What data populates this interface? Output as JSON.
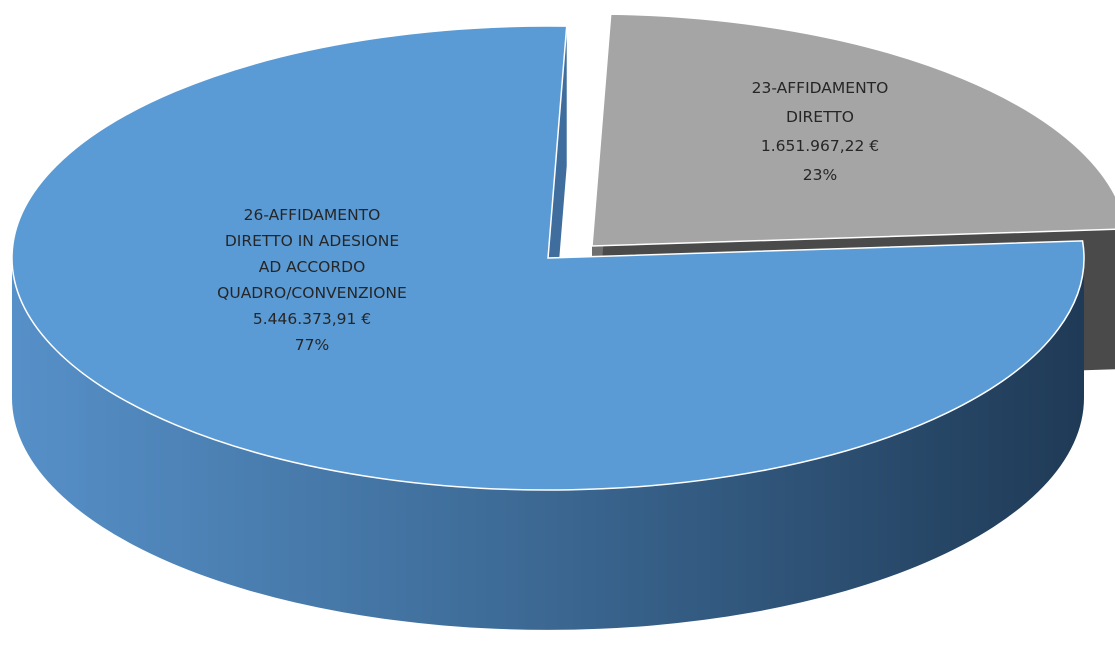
{
  "chart_data": {
    "type": "pie",
    "title": "",
    "slices": [
      {
        "label_lines": [
          "26-AFFIDAMENTO",
          "DIRETTO IN ADESIONE",
          "AD ACCORDO",
          "QUADRO/CONVENZIONE"
        ],
        "value": 5446373.91,
        "value_text": "5.446.373,91 €",
        "percent": 77,
        "percent_text": "77%",
        "color": "#5b9bd5",
        "exploded": false
      },
      {
        "label_lines": [
          "23-AFFIDAMENTO",
          "DIRETTO"
        ],
        "value": 1651967.22,
        "value_text": "1.651.967,22 €",
        "percent": 23,
        "percent_text": "23%",
        "color": "#a5a5a5",
        "exploded": true
      }
    ],
    "style": "3d-exploded",
    "legend": "none"
  }
}
